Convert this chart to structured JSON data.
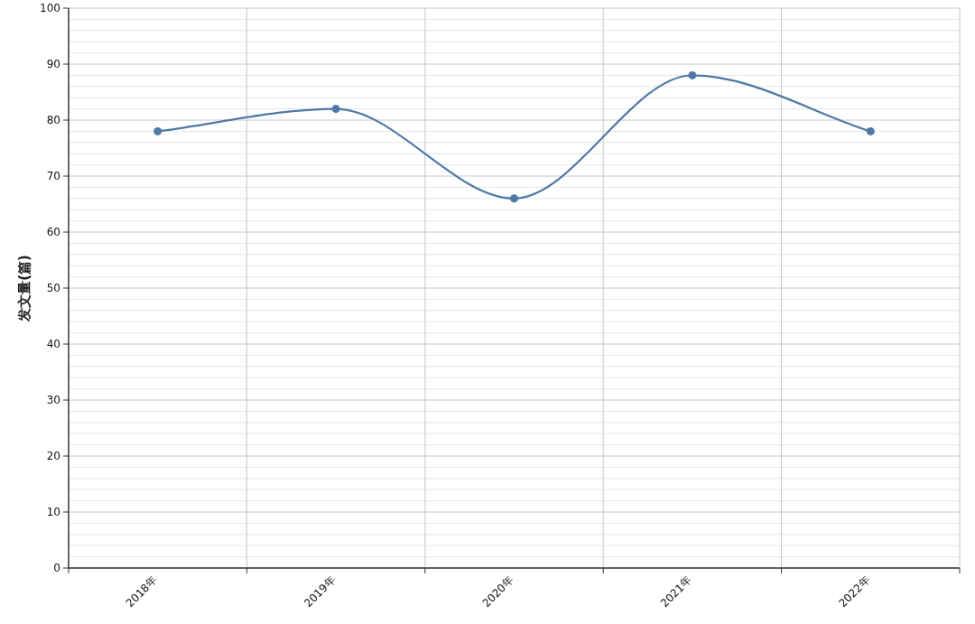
{
  "chart_data": {
    "type": "line",
    "ylabel": "发文量(篇)",
    "categories": [
      "2018年",
      "2019年",
      "2020年",
      "2021年",
      "2022年"
    ],
    "series": [
      {
        "color": "#4e79a7",
        "values": [
          78,
          82,
          66,
          88,
          78
        ]
      }
    ],
    "ylim": [
      0,
      100
    ],
    "yticks": [
      0,
      10,
      20,
      30,
      40,
      50,
      60,
      70,
      80,
      90,
      100
    ],
    "grid": true,
    "marker": "circle",
    "line_style": "solid"
  }
}
